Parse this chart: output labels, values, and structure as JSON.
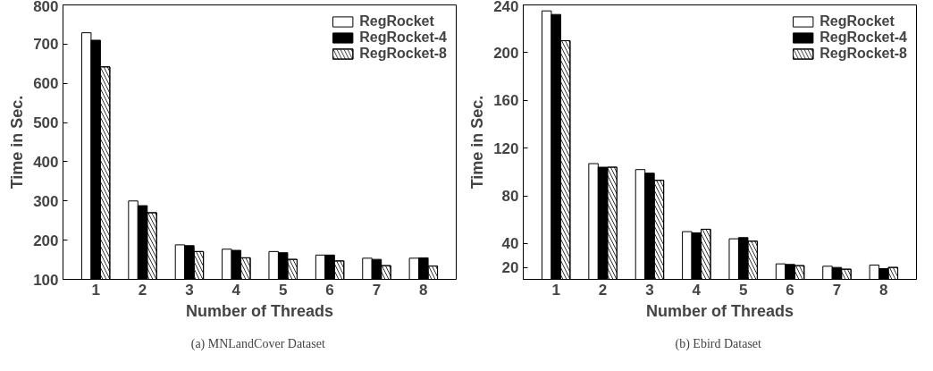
{
  "chart_data": [
    {
      "type": "bar",
      "categories": [
        "1",
        "2",
        "3",
        "4",
        "5",
        "6",
        "7",
        "8"
      ],
      "xlabel": "Number of Threads",
      "ylabel": "Time in Sec.",
      "ylim": [
        100,
        800
      ],
      "yticks": [
        100,
        200,
        300,
        400,
        500,
        600,
        700,
        800
      ],
      "legend": "top right",
      "grid": false,
      "annotations": [
        "(a)  MNLandCover Dataset"
      ],
      "series": [
        {
          "name": "RegRocket",
          "color": "#ffffff",
          "values": [
            729,
            300,
            188,
            177,
            171,
            162,
            154,
            154
          ]
        },
        {
          "name": "RegRocket-4",
          "color": "#000000",
          "values": [
            710,
            288,
            186,
            174,
            168,
            162,
            151,
            155
          ]
        },
        {
          "name": "RegRocket-8",
          "color": "#ffffff",
          "values": [
            642,
            270,
            171,
            155,
            151,
            147,
            135,
            134
          ]
        }
      ]
    },
    {
      "type": "bar",
      "categories": [
        "1",
        "2",
        "3",
        "4",
        "5",
        "6",
        "7",
        "8"
      ],
      "xlabel": "Number of Threads",
      "ylabel": "Time in Sec.",
      "ylim": [
        10,
        240
      ],
      "yticks": [
        20,
        40,
        80,
        120,
        160,
        200,
        240
      ],
      "legend": "top right",
      "grid": false,
      "annotations": [
        "(b)  Ebird Dataset"
      ],
      "series": [
        {
          "name": "RegRocket",
          "color": "#ffffff",
          "values": [
            235,
            107,
            102,
            50,
            44,
            23,
            21,
            22
          ]
        },
        {
          "name": "RegRocket-4",
          "color": "#000000",
          "values": [
            232,
            104,
            99,
            49,
            45,
            22.5,
            20,
            19
          ]
        },
        {
          "name": "RegRocket-8",
          "color": "#ffffff",
          "values": [
            210,
            104,
            93,
            52,
            42,
            21.5,
            18.5,
            20
          ]
        }
      ]
    }
  ]
}
